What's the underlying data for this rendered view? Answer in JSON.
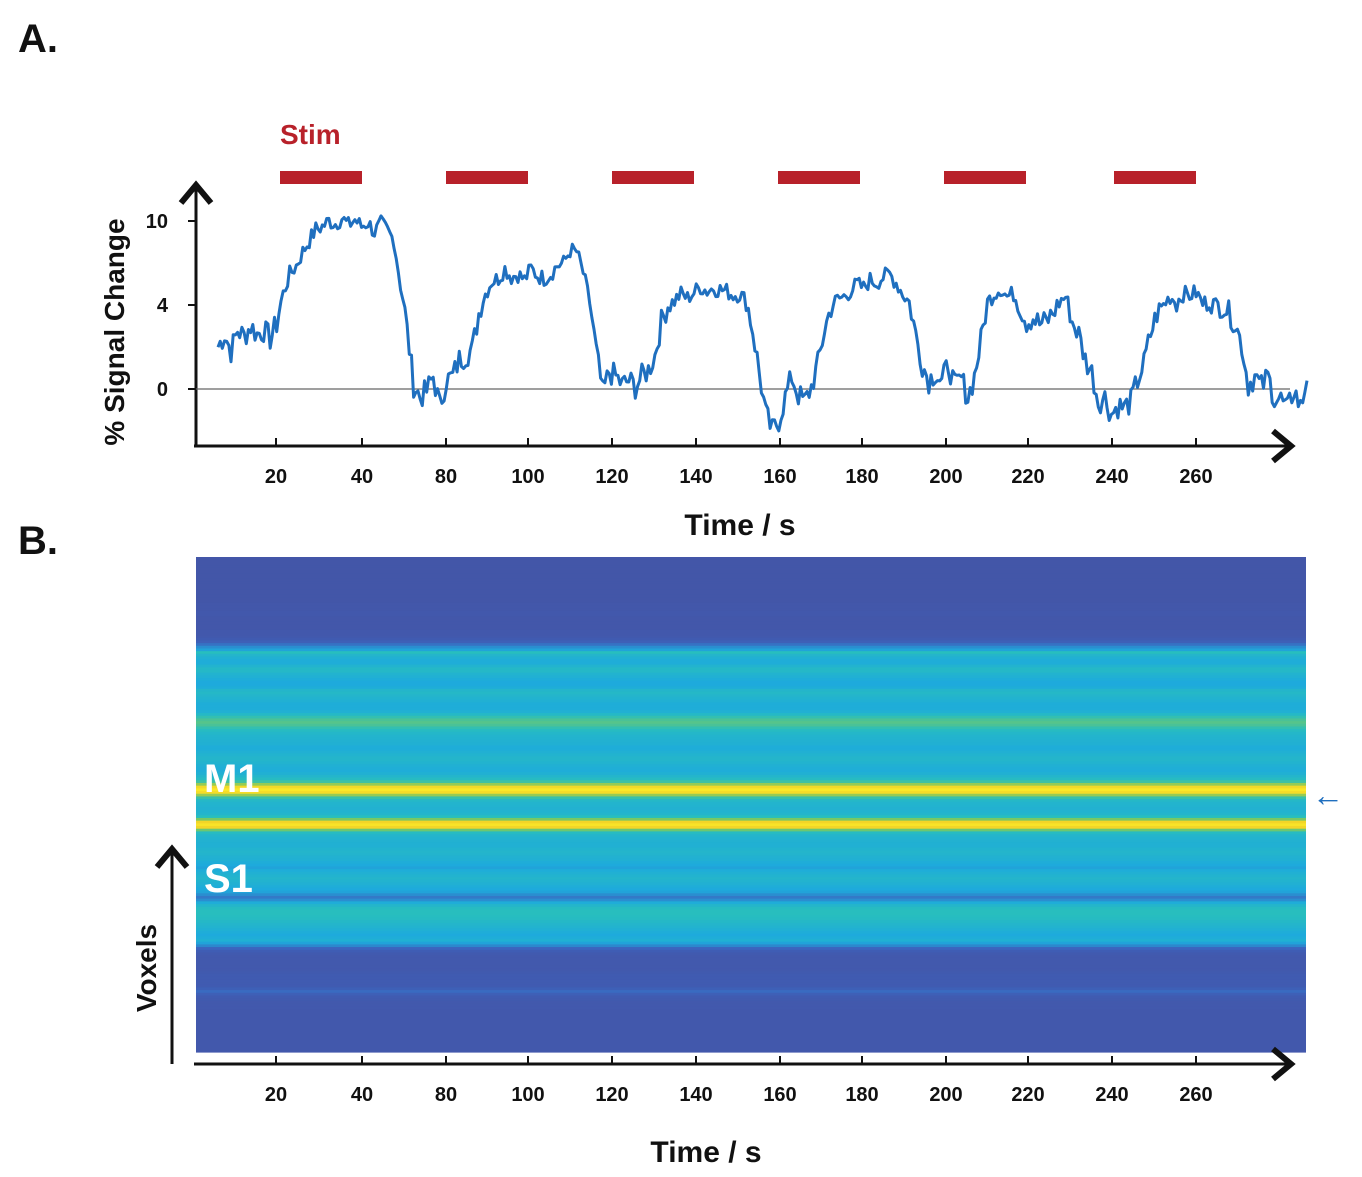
{
  "chart_data": [
    {
      "panel": "A.",
      "type": "line",
      "xlabel": "Time / s",
      "ylabel": "% Signal Change",
      "x_ticks": [
        20,
        40,
        80,
        100,
        120,
        140,
        160,
        180,
        200,
        220,
        240,
        260
      ],
      "y_ticks": [
        0,
        4,
        10
      ],
      "stim_label": "Stim",
      "stim_blocks": [
        {
          "label": "20–40"
        },
        {
          "label": "80–100"
        },
        {
          "label": "120–140"
        },
        {
          "label": "160–180"
        },
        {
          "label": "200–220"
        },
        {
          "label": "240–260"
        }
      ],
      "series": [
        {
          "name": "% Signal Change",
          "color": "#1f6fbf",
          "values": [
            2.0,
            2.6,
            1.8,
            2.8,
            2.5,
            3.0,
            2.6,
            2.8,
            2.4,
            3.1,
            4.8,
            6.2,
            6.8,
            7.8,
            8.6,
            9.4,
            9.6,
            10.0,
            9.8,
            10.2,
            9.7,
            10.1,
            9.6,
            9.9,
            9.2,
            9.8,
            9.3,
            8.6,
            5.4,
            2.8,
            0.2,
            -0.4,
            -0.1,
            0.6,
            -0.8,
            0.4,
            0.6,
            1.4,
            1.6,
            1.9,
            3.6,
            4.8,
            5.7,
            5.9,
            6.6,
            6.0,
            6.2,
            5.8,
            6.6,
            6.1,
            5.9,
            6.2,
            6.8,
            7.0,
            7.9,
            7.8,
            6.3,
            4.2,
            1.8,
            -0.2,
            0.8,
            0.6,
            0.2,
            0.4,
            0.1,
            0.6,
            0.9,
            1.6,
            3.2,
            4.0,
            4.3,
            4.8,
            4.5,
            4.9,
            5.3,
            5.0,
            5.2,
            5.1,
            5.0,
            4.7,
            4.8,
            4.3,
            2.8,
            0.8,
            -1.2,
            -2.0,
            -1.5,
            -0.4,
            0.6,
            -0.3,
            -0.6,
            0.1,
            1.2,
            2.8,
            3.9,
            4.4,
            4.6,
            5.0,
            5.5,
            5.2,
            5.8,
            5.6,
            6.0,
            6.2,
            5.6,
            4.8,
            4.2,
            2.6,
            1.2,
            0.4,
            0.8,
            0.3,
            1.2,
            0.1,
            0.5,
            -0.4,
            0.6,
            2.3,
            4.2,
            4.8,
            5.2,
            4.6,
            4.8,
            3.9,
            3.2,
            3.4,
            3.1,
            3.2,
            3.6,
            4.2,
            4.6,
            3.2,
            2.6,
            1.4,
            0.8,
            -0.6,
            -0.4,
            -1.2,
            -0.8,
            -0.9,
            -0.6,
            0.4,
            1.2,
            2.6,
            3.6,
            4.0,
            4.6,
            4.2,
            4.8,
            4.7,
            4.9,
            4.1,
            4.3,
            4.0,
            4.0,
            3.7,
            3.1,
            2.1,
            0.2,
            0.6,
            0.1,
            0.6,
            -0.4,
            -0.5,
            -1.0,
            0.0,
            -0.9,
            0.4
          ]
        }
      ]
    },
    {
      "panel": "B.",
      "type": "heatmap",
      "xlabel": "Time / s",
      "ylabel": "Voxels",
      "x_ticks": [
        20,
        40,
        80,
        100,
        120,
        140,
        160,
        180,
        200,
        220,
        240,
        260
      ],
      "colormap": "viridis-like",
      "region_labels": [
        "M1",
        "S1"
      ],
      "marker": "←",
      "row_intensity": [
        0.05,
        0.05,
        0.05,
        0.05,
        0.05,
        0.05,
        0.05,
        0.05,
        0.05,
        0.05,
        0.05,
        0.05,
        0.05,
        0.05,
        0.05,
        0.05,
        0.05,
        0.06,
        0.06,
        0.06,
        0.07,
        0.07,
        0.06,
        0.06,
        0.06,
        0.06,
        0.06,
        0.07,
        0.07,
        0.08,
        0.1,
        0.14,
        0.22,
        0.3,
        0.36,
        0.52,
        0.46,
        0.42,
        0.4,
        0.4,
        0.44,
        0.48,
        0.48,
        0.44,
        0.42,
        0.4,
        0.38,
        0.38,
        0.4,
        0.46,
        0.48,
        0.46,
        0.44,
        0.42,
        0.4,
        0.4,
        0.4,
        0.42,
        0.48,
        0.54,
        0.58,
        0.6,
        0.58,
        0.54,
        0.5,
        0.47,
        0.45,
        0.44,
        0.43,
        0.42,
        0.4,
        0.4,
        0.42,
        0.44,
        0.46,
        0.46,
        0.44,
        0.42,
        0.41,
        0.4,
        0.42,
        0.46,
        0.5,
        0.56,
        0.7,
        0.86,
        0.95,
        0.88,
        0.7,
        0.55,
        0.48,
        0.45,
        0.44,
        0.43,
        0.44,
        0.46,
        0.52,
        0.66,
        0.84,
        0.92,
        0.84,
        0.64,
        0.5,
        0.46,
        0.44,
        0.43,
        0.42,
        0.42,
        0.44,
        0.46,
        0.45,
        0.43,
        0.42,
        0.4,
        0.38,
        0.36,
        0.4,
        0.42,
        0.44,
        0.46,
        0.44,
        0.42,
        0.4,
        0.38,
        0.36,
        0.3,
        0.24,
        0.3,
        0.4,
        0.46,
        0.5,
        0.52,
        0.52,
        0.51,
        0.5,
        0.48,
        0.46,
        0.44,
        0.42,
        0.4,
        0.38,
        0.4,
        0.42,
        0.36,
        0.28,
        0.18,
        0.12,
        0.09,
        0.08,
        0.08,
        0.08,
        0.08,
        0.08,
        0.08,
        0.09,
        0.1,
        0.1,
        0.1,
        0.1,
        0.1,
        0.14,
        0.2,
        0.14,
        0.1,
        0.09,
        0.08,
        0.08,
        0.08,
        0.07,
        0.07,
        0.07,
        0.07,
        0.07,
        0.07,
        0.07,
        0.07,
        0.07,
        0.07,
        0.07,
        0.07,
        0.07,
        0.07,
        0.07,
        0.07
      ]
    }
  ]
}
